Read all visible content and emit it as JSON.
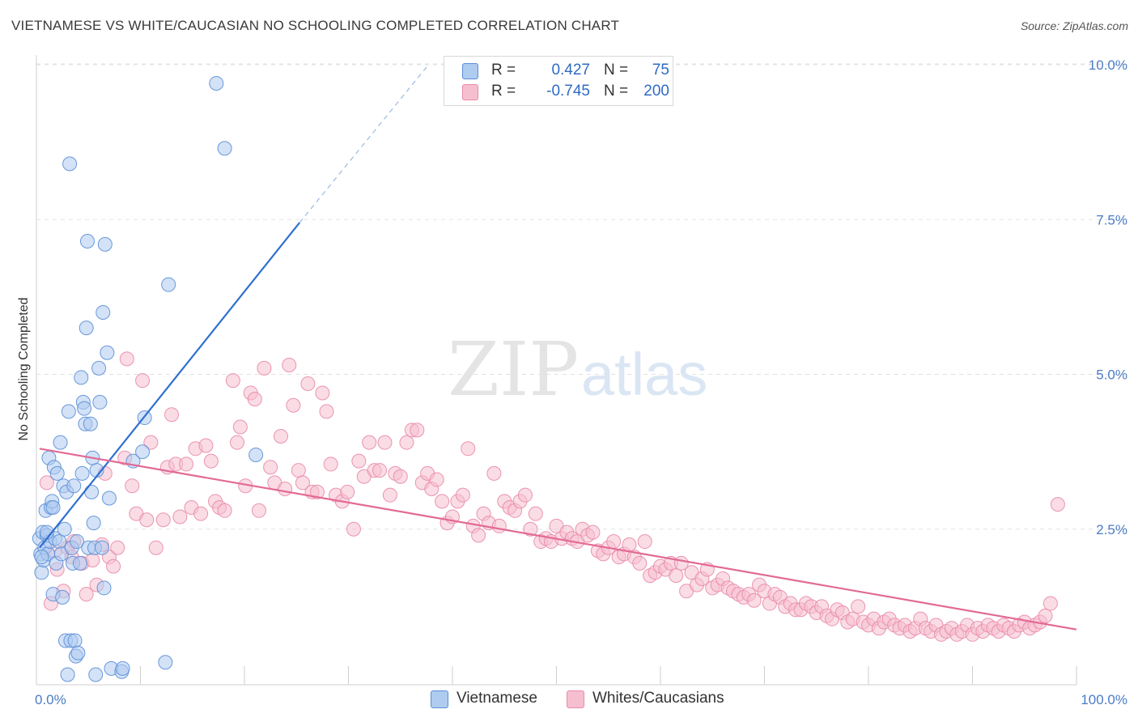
{
  "title": "VIETNAMESE VS WHITE/CAUCASIAN NO SCHOOLING COMPLETED CORRELATION CHART",
  "source": "Source: ZipAtlas.com",
  "watermark": {
    "part1": "ZIP",
    "part2": "atlas"
  },
  "colors": {
    "blue_fill": "#aecbf0",
    "blue_stroke": "#5b8ed6",
    "blue_line": "#2f6fd0",
    "pink_fill": "#f6bfd0",
    "pink_stroke": "#e98aa8",
    "pink_line": "#e26a95",
    "tick_text": "#4a7cc4",
    "grid": "#e3e3e3"
  },
  "legend": {
    "rows": [
      {
        "series": "Vietnamese",
        "r_label": "R =",
        "r_value": "0.427",
        "n_label": "N =",
        "n_value": "75"
      },
      {
        "series": "Whites/Caucasians",
        "r_label": "R =",
        "r_value": "-0.745",
        "n_label": "N =",
        "n_value": "200"
      }
    ]
  },
  "chart_data": {
    "type": "scatter",
    "title": "VIETNAMESE VS WHITE/CAUCASIAN NO SCHOOLING COMPLETED CORRELATION CHART",
    "xlabel": "",
    "ylabel": "No Schooling Completed",
    "x_ticks": [
      "0.0%",
      "100.0%"
    ],
    "y_ticks": [
      "2.5%",
      "5.0%",
      "7.5%",
      "10.0%"
    ],
    "xlim": [
      0,
      100
    ],
    "ylim": [
      0,
      10.4
    ],
    "grid": true,
    "legend_position": "top-center",
    "series": [
      {
        "name": "Vietnamese",
        "color": "#aecbf0",
        "points": [
          [
            0.3,
            2.35
          ],
          [
            0.4,
            2.1
          ],
          [
            0.5,
            1.8
          ],
          [
            0.6,
            2.45
          ],
          [
            0.7,
            2.0
          ],
          [
            0.8,
            2.2
          ],
          [
            0.9,
            2.8
          ],
          [
            1.0,
            2.4
          ],
          [
            1.1,
            2.1
          ],
          [
            1.2,
            3.65
          ],
          [
            1.3,
            2.3
          ],
          [
            1.4,
            2.85
          ],
          [
            1.5,
            2.95
          ],
          [
            1.6,
            1.45
          ],
          [
            1.7,
            3.5
          ],
          [
            1.8,
            2.35
          ],
          [
            1.9,
            1.95
          ],
          [
            2.0,
            3.4
          ],
          [
            2.2,
            2.3
          ],
          [
            2.3,
            3.9
          ],
          [
            2.4,
            2.1
          ],
          [
            2.5,
            1.4
          ],
          [
            2.6,
            3.2
          ],
          [
            2.7,
            2.5
          ],
          [
            2.8,
            0.7
          ],
          [
            2.9,
            3.1
          ],
          [
            3.0,
            0.15
          ],
          [
            3.1,
            4.4
          ],
          [
            3.2,
            8.4
          ],
          [
            3.3,
            0.7
          ],
          [
            3.4,
            2.2
          ],
          [
            3.5,
            1.95
          ],
          [
            3.6,
            3.2
          ],
          [
            3.7,
            0.7
          ],
          [
            3.8,
            0.45
          ],
          [
            3.9,
            2.3
          ],
          [
            4.0,
            0.5
          ],
          [
            4.2,
            1.95
          ],
          [
            4.3,
            4.95
          ],
          [
            4.4,
            3.4
          ],
          [
            4.5,
            4.55
          ],
          [
            4.6,
            4.45
          ],
          [
            4.7,
            4.2
          ],
          [
            4.8,
            5.75
          ],
          [
            4.9,
            7.15
          ],
          [
            5.0,
            2.2
          ],
          [
            5.2,
            4.2
          ],
          [
            5.3,
            3.1
          ],
          [
            5.4,
            3.65
          ],
          [
            5.5,
            2.6
          ],
          [
            5.6,
            2.2
          ],
          [
            5.7,
            0.15
          ],
          [
            5.8,
            3.45
          ],
          [
            6.0,
            5.1
          ],
          [
            6.1,
            4.55
          ],
          [
            6.3,
            2.2
          ],
          [
            6.4,
            6.0
          ],
          [
            6.5,
            1.55
          ],
          [
            6.6,
            7.1
          ],
          [
            6.8,
            5.35
          ],
          [
            7.0,
            3.0
          ],
          [
            7.2,
            0.25
          ],
          [
            8.2,
            0.2
          ],
          [
            8.3,
            0.25
          ],
          [
            9.3,
            3.6
          ],
          [
            10.2,
            3.75
          ],
          [
            10.4,
            4.3
          ],
          [
            12.4,
            0.35
          ],
          [
            12.7,
            6.45
          ],
          [
            17.3,
            9.7
          ],
          [
            18.1,
            8.65
          ],
          [
            21.1,
            3.7
          ],
          [
            0.5,
            2.05
          ],
          [
            1.0,
            2.45
          ],
          [
            1.6,
            2.85
          ]
        ]
      },
      {
        "name": "Whites/Caucasians",
        "color": "#f6bfd0",
        "points": [
          [
            1.0,
            3.25
          ],
          [
            1.4,
            1.3
          ],
          [
            1.8,
            2.15
          ],
          [
            2.0,
            1.85
          ],
          [
            2.6,
            1.5
          ],
          [
            3.0,
            2.2
          ],
          [
            3.4,
            2.05
          ],
          [
            3.6,
            2.3
          ],
          [
            4.4,
            1.95
          ],
          [
            4.8,
            1.45
          ],
          [
            5.4,
            2.0
          ],
          [
            5.8,
            1.6
          ],
          [
            6.3,
            2.25
          ],
          [
            6.6,
            3.4
          ],
          [
            7.0,
            2.05
          ],
          [
            7.4,
            1.9
          ],
          [
            7.8,
            2.2
          ],
          [
            8.5,
            3.65
          ],
          [
            8.7,
            5.25
          ],
          [
            9.2,
            3.2
          ],
          [
            9.6,
            2.75
          ],
          [
            10.2,
            4.9
          ],
          [
            10.6,
            2.65
          ],
          [
            11.0,
            3.9
          ],
          [
            11.5,
            2.2
          ],
          [
            12.2,
            2.65
          ],
          [
            12.6,
            3.5
          ],
          [
            13.0,
            4.35
          ],
          [
            13.4,
            3.55
          ],
          [
            13.8,
            2.7
          ],
          [
            14.4,
            3.55
          ],
          [
            14.9,
            2.85
          ],
          [
            15.3,
            3.8
          ],
          [
            15.8,
            2.75
          ],
          [
            16.3,
            3.85
          ],
          [
            16.8,
            3.6
          ],
          [
            17.2,
            2.95
          ],
          [
            17.6,
            2.85
          ],
          [
            18.1,
            2.8
          ],
          [
            18.9,
            4.9
          ],
          [
            19.3,
            3.9
          ],
          [
            19.6,
            4.15
          ],
          [
            20.1,
            3.2
          ],
          [
            20.6,
            4.7
          ],
          [
            21.0,
            4.6
          ],
          [
            21.4,
            2.8
          ],
          [
            21.9,
            5.1
          ],
          [
            22.5,
            3.5
          ],
          [
            22.9,
            3.25
          ],
          [
            23.5,
            4.0
          ],
          [
            23.9,
            3.15
          ],
          [
            24.3,
            5.15
          ],
          [
            24.7,
            4.5
          ],
          [
            25.2,
            3.45
          ],
          [
            25.6,
            3.25
          ],
          [
            26.1,
            4.85
          ],
          [
            26.5,
            3.1
          ],
          [
            27.0,
            3.1
          ],
          [
            27.5,
            4.7
          ],
          [
            27.9,
            4.4
          ],
          [
            28.3,
            3.55
          ],
          [
            28.8,
            3.05
          ],
          [
            29.4,
            2.95
          ],
          [
            29.9,
            3.1
          ],
          [
            30.5,
            2.5
          ],
          [
            31.0,
            3.6
          ],
          [
            31.5,
            3.35
          ],
          [
            32.0,
            3.9
          ],
          [
            32.5,
            3.45
          ],
          [
            33.0,
            3.45
          ],
          [
            33.5,
            3.9
          ],
          [
            34.0,
            3.05
          ],
          [
            34.5,
            3.4
          ],
          [
            35.0,
            3.35
          ],
          [
            35.6,
            3.9
          ],
          [
            36.1,
            4.1
          ],
          [
            36.6,
            4.1
          ],
          [
            37.1,
            3.25
          ],
          [
            37.6,
            3.4
          ],
          [
            38.0,
            3.15
          ],
          [
            38.5,
            3.3
          ],
          [
            39.0,
            2.95
          ],
          [
            39.5,
            2.6
          ],
          [
            40.0,
            2.7
          ],
          [
            40.5,
            2.95
          ],
          [
            41.0,
            3.05
          ],
          [
            41.5,
            3.8
          ],
          [
            42.0,
            2.55
          ],
          [
            42.5,
            2.4
          ],
          [
            43.0,
            2.75
          ],
          [
            43.5,
            2.6
          ],
          [
            44.0,
            3.4
          ],
          [
            44.5,
            2.55
          ],
          [
            45.0,
            2.95
          ],
          [
            45.5,
            2.85
          ],
          [
            46.0,
            2.8
          ],
          [
            46.5,
            2.95
          ],
          [
            47.0,
            3.05
          ],
          [
            47.5,
            2.5
          ],
          [
            48.0,
            2.75
          ],
          [
            48.5,
            2.3
          ],
          [
            49.0,
            2.35
          ],
          [
            49.5,
            2.3
          ],
          [
            50.0,
            2.55
          ],
          [
            50.5,
            2.35
          ],
          [
            51.0,
            2.45
          ],
          [
            51.5,
            2.35
          ],
          [
            52.0,
            2.3
          ],
          [
            52.5,
            2.5
          ],
          [
            53.0,
            2.4
          ],
          [
            53.5,
            2.45
          ],
          [
            54.0,
            2.15
          ],
          [
            54.5,
            2.1
          ],
          [
            55.0,
            2.2
          ],
          [
            55.5,
            2.3
          ],
          [
            56.0,
            2.05
          ],
          [
            56.5,
            2.1
          ],
          [
            57.0,
            2.25
          ],
          [
            57.5,
            2.05
          ],
          [
            58.0,
            1.95
          ],
          [
            58.5,
            2.3
          ],
          [
            59.0,
            1.75
          ],
          [
            59.5,
            1.8
          ],
          [
            60.0,
            1.9
          ],
          [
            60.5,
            1.85
          ],
          [
            61.0,
            1.95
          ],
          [
            61.5,
            1.75
          ],
          [
            62.0,
            1.95
          ],
          [
            62.5,
            1.5
          ],
          [
            63.0,
            1.8
          ],
          [
            63.5,
            1.6
          ],
          [
            64.0,
            1.7
          ],
          [
            64.5,
            1.85
          ],
          [
            65.0,
            1.55
          ],
          [
            65.5,
            1.6
          ],
          [
            66.0,
            1.7
          ],
          [
            66.5,
            1.55
          ],
          [
            67.0,
            1.5
          ],
          [
            67.5,
            1.45
          ],
          [
            68.0,
            1.4
          ],
          [
            68.5,
            1.45
          ],
          [
            69.0,
            1.35
          ],
          [
            69.5,
            1.6
          ],
          [
            70.0,
            1.5
          ],
          [
            70.5,
            1.3
          ],
          [
            71.0,
            1.45
          ],
          [
            71.5,
            1.4
          ],
          [
            72.0,
            1.25
          ],
          [
            72.5,
            1.3
          ],
          [
            73.0,
            1.2
          ],
          [
            73.5,
            1.2
          ],
          [
            74.0,
            1.3
          ],
          [
            74.5,
            1.25
          ],
          [
            75.0,
            1.15
          ],
          [
            75.5,
            1.25
          ],
          [
            76.0,
            1.1
          ],
          [
            76.5,
            1.05
          ],
          [
            77.0,
            1.2
          ],
          [
            77.5,
            1.15
          ],
          [
            78.0,
            1.0
          ],
          [
            78.5,
            1.05
          ],
          [
            79.0,
            1.25
          ],
          [
            79.5,
            1.0
          ],
          [
            80.0,
            0.95
          ],
          [
            80.5,
            1.05
          ],
          [
            81.0,
            0.9
          ],
          [
            81.5,
            1.0
          ],
          [
            82.0,
            1.05
          ],
          [
            82.5,
            0.95
          ],
          [
            83.0,
            0.9
          ],
          [
            83.5,
            0.95
          ],
          [
            84.0,
            0.85
          ],
          [
            84.5,
            0.9
          ],
          [
            85.0,
            1.05
          ],
          [
            85.5,
            0.9
          ],
          [
            86.0,
            0.85
          ],
          [
            86.5,
            0.95
          ],
          [
            87.0,
            0.8
          ],
          [
            87.5,
            0.85
          ],
          [
            88.0,
            0.9
          ],
          [
            88.5,
            0.8
          ],
          [
            89.0,
            0.85
          ],
          [
            89.5,
            0.95
          ],
          [
            90.0,
            0.8
          ],
          [
            90.5,
            0.9
          ],
          [
            91.0,
            0.85
          ],
          [
            91.5,
            0.95
          ],
          [
            92.0,
            0.9
          ],
          [
            92.5,
            0.85
          ],
          [
            93.0,
            0.95
          ],
          [
            93.5,
            0.9
          ],
          [
            94.0,
            0.85
          ],
          [
            94.5,
            0.95
          ],
          [
            95.0,
            1.0
          ],
          [
            95.5,
            0.9
          ],
          [
            96.0,
            0.95
          ],
          [
            96.5,
            1.0
          ],
          [
            97.0,
            1.1
          ],
          [
            97.5,
            1.3
          ],
          [
            98.2,
            2.9
          ]
        ]
      }
    ],
    "trend_lines": [
      {
        "series": "Vietnamese",
        "x": [
          0.3,
          25.3
        ],
        "y": [
          2.2,
          7.45
        ],
        "extended_x": [
          25.3,
          37.7
        ],
        "extended_y": [
          7.45,
          10.0
        ]
      },
      {
        "series": "Whites/Caucasians",
        "x": [
          0.3,
          100
        ],
        "y": [
          3.8,
          0.88
        ]
      }
    ]
  }
}
